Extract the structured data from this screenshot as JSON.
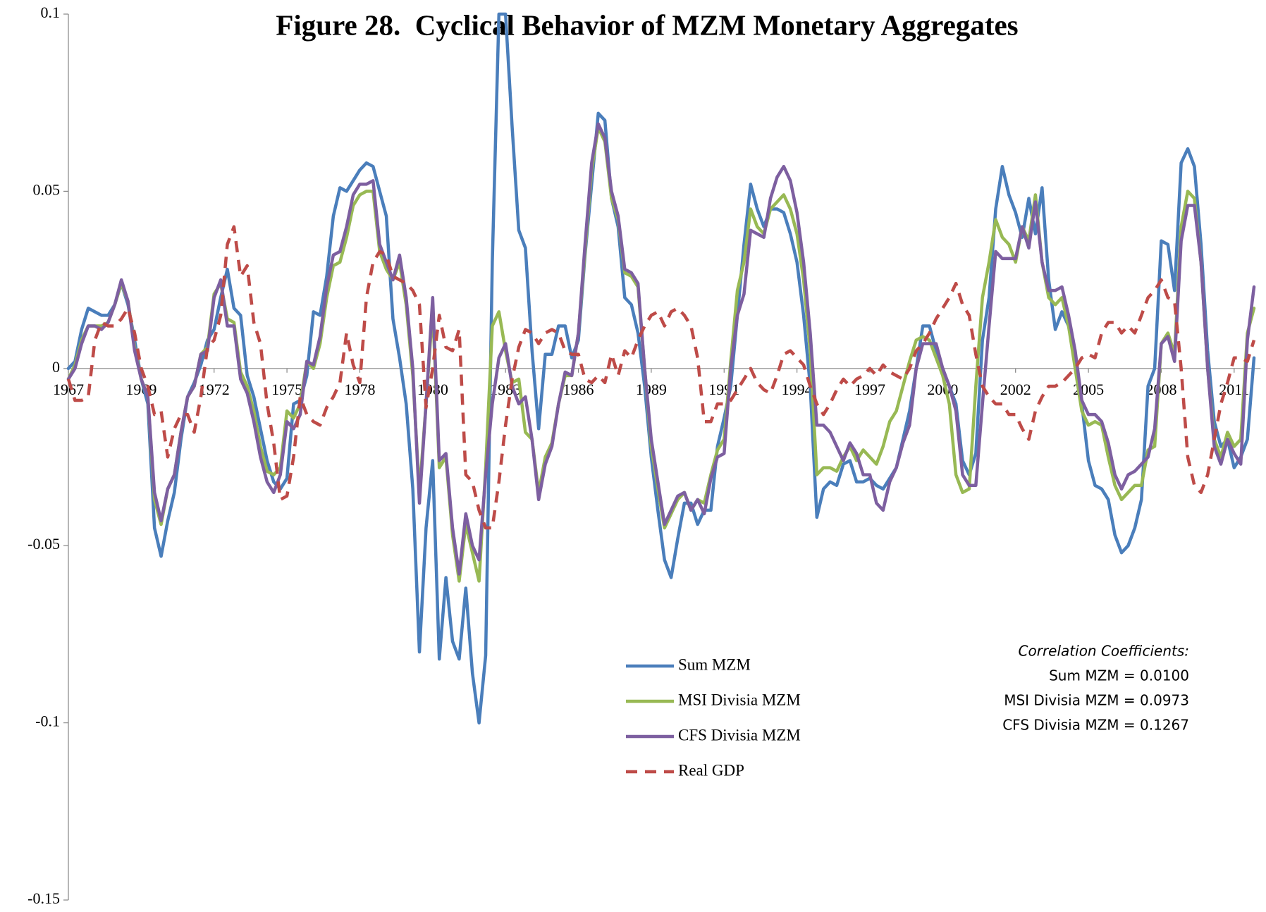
{
  "chart_data": {
    "type": "line",
    "title": "Figure 28.  Cyclical Behavior of MZM Monetary Aggregates",
    "categories": [
      "1967",
      null,
      null,
      null,
      null,
      null,
      null,
      null,
      null,
      null,
      null,
      "1969",
      null,
      null,
      null,
      null,
      null,
      null,
      null,
      null,
      null,
      null,
      "1972",
      null,
      null,
      null,
      null,
      null,
      null,
      null,
      null,
      null,
      null,
      "1975",
      null,
      null,
      null,
      null,
      null,
      null,
      null,
      null,
      null,
      null,
      "1978",
      null,
      null,
      null,
      null,
      null,
      null,
      null,
      null,
      null,
      null,
      "1980",
      null,
      null,
      null,
      null,
      null,
      null,
      null,
      null,
      null,
      null,
      "1983",
      null,
      null,
      null,
      null,
      null,
      null,
      null,
      null,
      null,
      null,
      "1986",
      null,
      null,
      null,
      null,
      null,
      null,
      null,
      null,
      null,
      null,
      "1989",
      null,
      null,
      null,
      null,
      null,
      null,
      null,
      null,
      null,
      null,
      "1991",
      null,
      null,
      null,
      null,
      null,
      null,
      null,
      null,
      null,
      null,
      "1994",
      null,
      null,
      null,
      null,
      null,
      null,
      null,
      null,
      null,
      null,
      "1997",
      null,
      null,
      null,
      null,
      null,
      null,
      null,
      null,
      null,
      null,
      "2000",
      null,
      null,
      null,
      null,
      null,
      null,
      null,
      null,
      null,
      null,
      "2002",
      null,
      null,
      null,
      null,
      null,
      null,
      null,
      null,
      null,
      null,
      "2005",
      null,
      null,
      null,
      null,
      null,
      null,
      null,
      null,
      null,
      null,
      "2008",
      null,
      null,
      null,
      null,
      null,
      null,
      null,
      null,
      null,
      null,
      "2011",
      null,
      null,
      null
    ],
    "series": [
      {
        "name": "Sum MZM",
        "color": "#4a7ebb",
        "line_style": "solid",
        "values": [
          0,
          0.002,
          0.011,
          0.017,
          0.016,
          0.015,
          0.015,
          0.018,
          0.024,
          0.018,
          0.008,
          -0.003,
          -0.01,
          -0.045,
          -0.053,
          -0.043,
          -0.035,
          -0.02,
          -0.008,
          -0.004,
          0.001,
          0.008,
          0.011,
          0.02,
          0.028,
          0.017,
          0.015,
          -0.002,
          -0.008,
          -0.017,
          -0.026,
          -0.032,
          -0.034,
          -0.031,
          -0.01,
          -0.009,
          -0.002,
          0.016,
          0.015,
          0.026,
          0.043,
          0.051,
          0.05,
          0.053,
          0.056,
          0.058,
          0.057,
          0.05,
          0.043,
          0.014,
          0.003,
          -0.01,
          -0.034,
          -0.08,
          -0.045,
          -0.026,
          -0.082,
          -0.059,
          -0.077,
          -0.082,
          -0.062,
          -0.086,
          -0.1,
          -0.081,
          0.03,
          0.1,
          0.1,
          0.068,
          0.039,
          0.034,
          0.005,
          -0.017,
          0.004,
          0.004,
          0.012,
          0.012,
          0.003,
          0.008,
          0.032,
          0.052,
          0.072,
          0.07,
          0.048,
          0.04,
          0.02,
          0.018,
          0.01,
          -0.005,
          -0.025,
          -0.04,
          -0.054,
          -0.059,
          -0.048,
          -0.038,
          -0.038,
          -0.044,
          -0.04,
          -0.04,
          -0.022,
          -0.014,
          -0.005,
          0.015,
          0.035,
          0.052,
          0.045,
          0.04,
          0.045,
          0.045,
          0.044,
          0.038,
          0.03,
          0.015,
          -0.005,
          -0.042,
          -0.034,
          -0.032,
          -0.033,
          -0.027,
          -0.026,
          -0.032,
          -0.032,
          -0.031,
          -0.033,
          -0.034,
          -0.031,
          -0.028,
          -0.02,
          -0.012,
          0.0,
          0.012,
          0.012,
          0.005,
          0.0,
          -0.005,
          -0.01,
          -0.026,
          -0.03,
          -0.024,
          0.008,
          0.02,
          0.045,
          0.057,
          0.049,
          0.044,
          0.037,
          0.048,
          0.038,
          0.051,
          0.025,
          0.011,
          0.016,
          0.012,
          0.004,
          -0.01,
          -0.026,
          -0.033,
          -0.034,
          -0.037,
          -0.047,
          -0.052,
          -0.05,
          -0.045,
          -0.037,
          -0.005,
          0.0,
          0.036,
          0.035,
          0.022,
          0.058,
          0.062,
          0.057,
          0.035,
          0.005,
          -0.015,
          -0.022,
          -0.02,
          -0.028,
          -0.025,
          -0.02,
          0.003
        ]
      },
      {
        "name": "MSI Divisia MZM",
        "color": "#98b954",
        "line_style": "solid",
        "values": [
          -0.003,
          0.001,
          0.008,
          0.012,
          0.012,
          0.012,
          0.013,
          0.018,
          0.024,
          0.019,
          0.006,
          -0.003,
          -0.008,
          -0.037,
          -0.044,
          -0.034,
          -0.03,
          -0.018,
          -0.008,
          -0.005,
          0.004,
          0.006,
          0.021,
          0.024,
          0.014,
          0.013,
          -0.001,
          -0.005,
          -0.012,
          -0.022,
          -0.029,
          -0.03,
          -0.028,
          -0.012,
          -0.014,
          -0.01,
          0.002,
          0.0,
          0.007,
          0.02,
          0.029,
          0.03,
          0.037,
          0.046,
          0.049,
          0.05,
          0.05,
          0.033,
          0.028,
          0.025,
          0.03,
          0.018,
          -0.002,
          -0.035,
          -0.01,
          0.017,
          -0.028,
          -0.025,
          -0.047,
          -0.06,
          -0.044,
          -0.052,
          -0.06,
          -0.028,
          0.012,
          0.016,
          0.005,
          -0.004,
          -0.003,
          -0.018,
          -0.02,
          -0.035,
          -0.025,
          -0.021,
          -0.01,
          -0.002,
          -0.002,
          0.01,
          0.033,
          0.056,
          0.068,
          0.064,
          0.048,
          0.042,
          0.027,
          0.026,
          0.023,
          0.0,
          -0.022,
          -0.034,
          -0.045,
          -0.041,
          -0.037,
          -0.035,
          -0.04,
          -0.037,
          -0.038,
          -0.03,
          -0.023,
          -0.02,
          0.002,
          0.022,
          0.03,
          0.045,
          0.04,
          0.038,
          0.045,
          0.047,
          0.049,
          0.045,
          0.038,
          0.025,
          0.005,
          -0.03,
          -0.028,
          -0.028,
          -0.029,
          -0.025,
          -0.022,
          -0.026,
          -0.023,
          -0.025,
          -0.027,
          -0.022,
          -0.015,
          -0.012,
          -0.005,
          0.002,
          0.008,
          0.009,
          0.008,
          0.003,
          -0.002,
          -0.01,
          -0.03,
          -0.035,
          -0.034,
          -0.005,
          0.02,
          0.03,
          0.042,
          0.037,
          0.035,
          0.03,
          0.04,
          0.036,
          0.049,
          0.03,
          0.02,
          0.018,
          0.02,
          0.012,
          0.0,
          -0.012,
          -0.016,
          -0.015,
          -0.016,
          -0.025,
          -0.033,
          -0.037,
          -0.035,
          -0.033,
          -0.033,
          -0.023,
          -0.022,
          0.007,
          0.01,
          0.004,
          0.04,
          0.05,
          0.048,
          0.03,
          0.0,
          -0.02,
          -0.025,
          -0.018,
          -0.022,
          -0.02,
          0.01,
          0.017
        ]
      },
      {
        "name": "CFS Divisia MZM",
        "color": "#7d5fa0",
        "line_style": "solid",
        "values": [
          -0.003,
          0.0,
          0.007,
          0.012,
          0.012,
          0.011,
          0.013,
          0.018,
          0.025,
          0.019,
          0.005,
          -0.003,
          -0.008,
          -0.035,
          -0.043,
          -0.034,
          -0.03,
          -0.018,
          -0.008,
          -0.005,
          0.004,
          0.005,
          0.02,
          0.025,
          0.012,
          0.012,
          -0.003,
          -0.007,
          -0.015,
          -0.025,
          -0.032,
          -0.035,
          -0.03,
          -0.015,
          -0.017,
          -0.013,
          0.002,
          0.001,
          0.009,
          0.023,
          0.032,
          0.033,
          0.04,
          0.049,
          0.052,
          0.052,
          0.053,
          0.035,
          0.03,
          0.025,
          0.032,
          0.02,
          0.0,
          -0.038,
          -0.01,
          0.02,
          -0.026,
          -0.024,
          -0.045,
          -0.058,
          -0.041,
          -0.05,
          -0.054,
          -0.03,
          -0.01,
          0.003,
          0.007,
          -0.005,
          -0.01,
          -0.008,
          -0.02,
          -0.037,
          -0.027,
          -0.022,
          -0.01,
          -0.001,
          -0.002,
          0.01,
          0.035,
          0.058,
          0.069,
          0.065,
          0.05,
          0.043,
          0.028,
          0.027,
          0.024,
          0.0,
          -0.02,
          -0.032,
          -0.044,
          -0.04,
          -0.036,
          -0.035,
          -0.04,
          -0.037,
          -0.041,
          -0.031,
          -0.025,
          -0.024,
          0.0,
          0.015,
          0.021,
          0.039,
          0.038,
          0.037,
          0.048,
          0.054,
          0.057,
          0.053,
          0.044,
          0.03,
          0.01,
          -0.016,
          -0.016,
          -0.018,
          -0.022,
          -0.026,
          -0.021,
          -0.024,
          -0.03,
          -0.03,
          -0.038,
          -0.04,
          -0.032,
          -0.028,
          -0.021,
          -0.016,
          0.0,
          0.007,
          0.007,
          0.007,
          0.0,
          -0.005,
          -0.012,
          -0.03,
          -0.033,
          -0.033,
          -0.01,
          0.012,
          0.033,
          0.031,
          0.031,
          0.031,
          0.04,
          0.034,
          0.047,
          0.03,
          0.022,
          0.022,
          0.023,
          0.015,
          0.005,
          -0.009,
          -0.013,
          -0.013,
          -0.015,
          -0.021,
          -0.03,
          -0.034,
          -0.03,
          -0.029,
          -0.027,
          -0.025,
          -0.017,
          0.007,
          0.009,
          0.002,
          0.036,
          0.046,
          0.046,
          0.03,
          0.0,
          -0.022,
          -0.027,
          -0.02,
          -0.024,
          -0.027,
          0.008,
          0.023
        ]
      },
      {
        "name": "Real GDP",
        "color": "#be4b48",
        "line_style": "dashed",
        "values": [
          -0.003,
          -0.009,
          -0.009,
          -0.008,
          0.008,
          0.013,
          0.012,
          0.012,
          0.014,
          0.017,
          0.01,
          0.0,
          -0.005,
          -0.013,
          -0.012,
          -0.025,
          -0.017,
          -0.013,
          -0.013,
          -0.018,
          -0.008,
          0.006,
          0.008,
          0.015,
          0.035,
          0.04,
          0.026,
          0.029,
          0.013,
          0.007,
          -0.01,
          -0.021,
          -0.037,
          -0.036,
          -0.025,
          -0.008,
          -0.013,
          -0.015,
          -0.016,
          -0.011,
          -0.008,
          -0.004,
          0.01,
          0.001,
          -0.004,
          0.02,
          0.03,
          0.033,
          0.032,
          0.026,
          0.025,
          0.024,
          0.022,
          0.018,
          -0.011,
          0.0,
          0.015,
          0.006,
          0.005,
          0.011,
          -0.03,
          -0.032,
          -0.04,
          -0.045,
          -0.045,
          -0.032,
          -0.016,
          -0.003,
          0.006,
          0.011,
          0.01,
          0.007,
          0.01,
          0.011,
          0.01,
          0.005,
          0.004,
          0.004,
          -0.003,
          -0.004,
          -0.002,
          -0.004,
          0.004,
          -0.002,
          0.005,
          0.003,
          0.008,
          0.012,
          0.015,
          0.016,
          0.012,
          0.016,
          0.017,
          0.015,
          0.012,
          0.003,
          -0.015,
          -0.015,
          -0.01,
          -0.01,
          -0.009,
          -0.006,
          -0.003,
          0.0,
          -0.004,
          -0.006,
          -0.007,
          -0.002,
          0.004,
          0.005,
          0.003,
          0.001,
          -0.005,
          -0.01,
          -0.013,
          -0.01,
          -0.006,
          -0.003,
          -0.005,
          -0.003,
          -0.002,
          0.0,
          -0.002,
          0.001,
          -0.001,
          -0.002,
          -0.003,
          0.0,
          0.005,
          0.007,
          0.01,
          0.014,
          0.017,
          0.02,
          0.024,
          0.018,
          0.015,
          0.004,
          -0.005,
          -0.008,
          -0.01,
          -0.01,
          -0.013,
          -0.013,
          -0.017,
          -0.02,
          -0.012,
          -0.008,
          -0.005,
          -0.005,
          -0.004,
          -0.002,
          0.0,
          0.003,
          0.004,
          0.003,
          0.01,
          0.013,
          0.013,
          0.01,
          0.012,
          0.01,
          0.015,
          0.02,
          0.022,
          0.025,
          0.02,
          0.019,
          0.0,
          -0.025,
          -0.033,
          -0.035,
          -0.03,
          -0.02,
          -0.01,
          -0.004,
          0.003,
          0.003,
          0.002,
          0.008
        ]
      }
    ],
    "ylim": [
      -0.15,
      0.1
    ],
    "yticks": [
      -0.15,
      -0.1,
      -0.05,
      0,
      0.05,
      0.1
    ],
    "grid": false,
    "legend_position": "bottom-center",
    "annotation": {
      "title": "Correlation Coefficients:",
      "lines": [
        "Sum MZM = 0.0100",
        "MSI Divisia MZM = 0.0973",
        "CFS Divisia MZM = 0.1267"
      ]
    }
  }
}
